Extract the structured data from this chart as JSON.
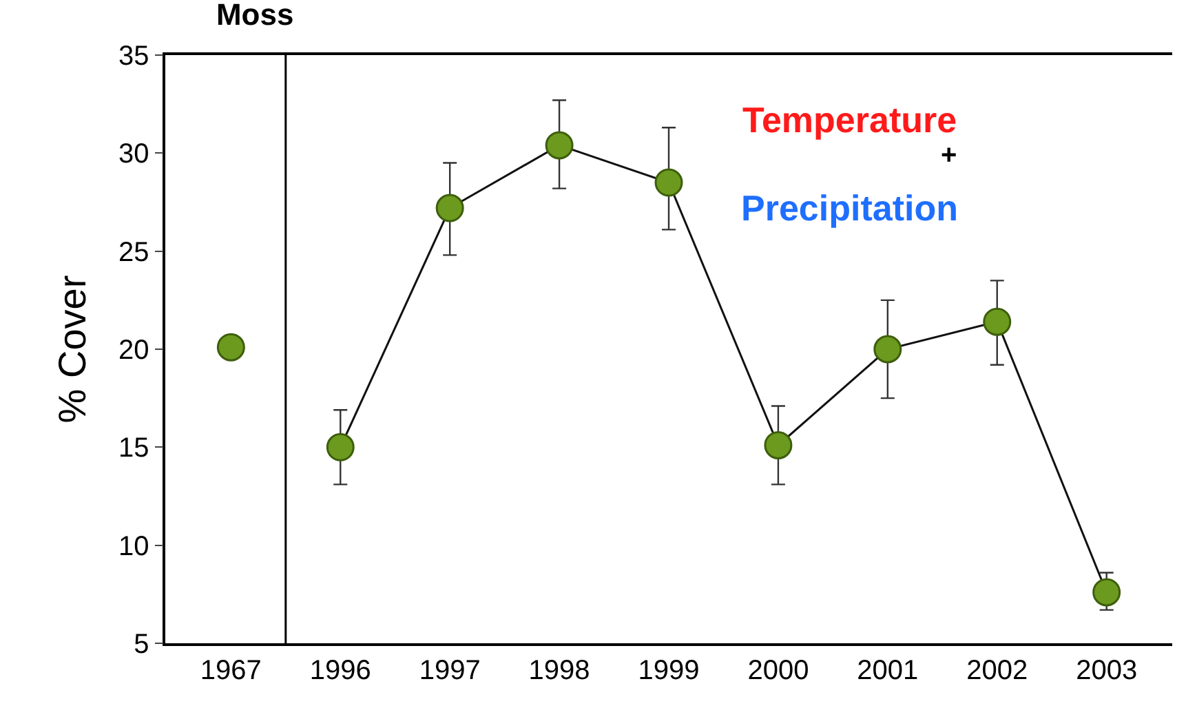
{
  "chart_data": {
    "type": "line",
    "title": "Moss",
    "ylabel": "% Cover",
    "categories": [
      "1967",
      "1996",
      "1997",
      "1998",
      "1999",
      "2000",
      "2001",
      "2002",
      "2003"
    ],
    "series": [
      {
        "type": "scatter",
        "color": "#6b9a1e",
        "values": [
          20.1,
          null,
          null,
          null,
          null,
          null,
          null,
          null,
          null
        ]
      },
      {
        "color": "#6b9a1e",
        "values": [
          null,
          15.0,
          27.2,
          30.4,
          28.5,
          15.1,
          20.0,
          21.4,
          7.6
        ],
        "errors": [
          null,
          [
            13.1,
            16.9
          ],
          [
            24.8,
            29.5
          ],
          [
            28.2,
            32.7
          ],
          [
            26.1,
            31.3
          ],
          [
            13.1,
            17.1
          ],
          [
            17.5,
            22.5
          ],
          [
            19.2,
            23.5
          ],
          [
            6.7,
            8.6
          ]
        ]
      }
    ],
    "ylim": [
      5,
      35
    ],
    "yticks": [
      5,
      10,
      15,
      20,
      25,
      30,
      35
    ],
    "marker": "circle",
    "line_style": "solid",
    "annotations": [
      "Temperature",
      "+",
      "Precipitation"
    ]
  }
}
